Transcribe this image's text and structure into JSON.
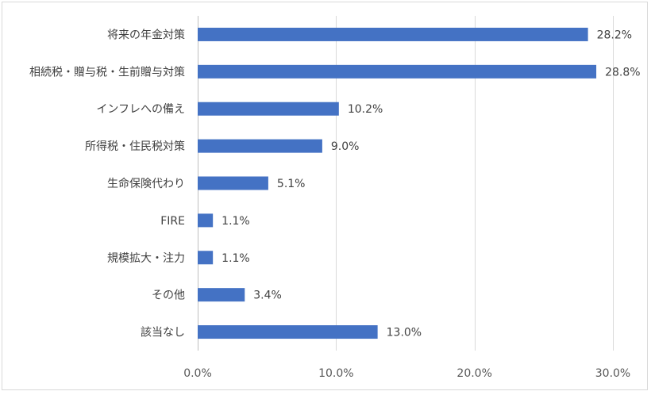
{
  "chart_data": {
    "type": "bar",
    "orientation": "horizontal",
    "categories": [
      "将来の年金対策",
      "相続税・贈与税・生前贈与対策",
      "インフレへの備え",
      "所得税・住民税対策",
      "生命保険代わり",
      "FIRE",
      "規模拡大・注力",
      "その他",
      "該当なし"
    ],
    "values": [
      28.2,
      28.8,
      10.2,
      9.0,
      5.1,
      1.1,
      1.1,
      3.4,
      13.0
    ],
    "value_labels": [
      "28.2%",
      "28.8%",
      "10.2%",
      "9.0%",
      "5.1%",
      "1.1%",
      "1.1%",
      "3.4%",
      "13.0%"
    ],
    "x_ticks": [
      0,
      10,
      20,
      30
    ],
    "x_tick_labels": [
      "0.0%",
      "10.0%",
      "20.0%",
      "30.0%"
    ],
    "xlim": [
      0,
      30
    ],
    "grid": true,
    "bar_color": "#4472c4"
  }
}
